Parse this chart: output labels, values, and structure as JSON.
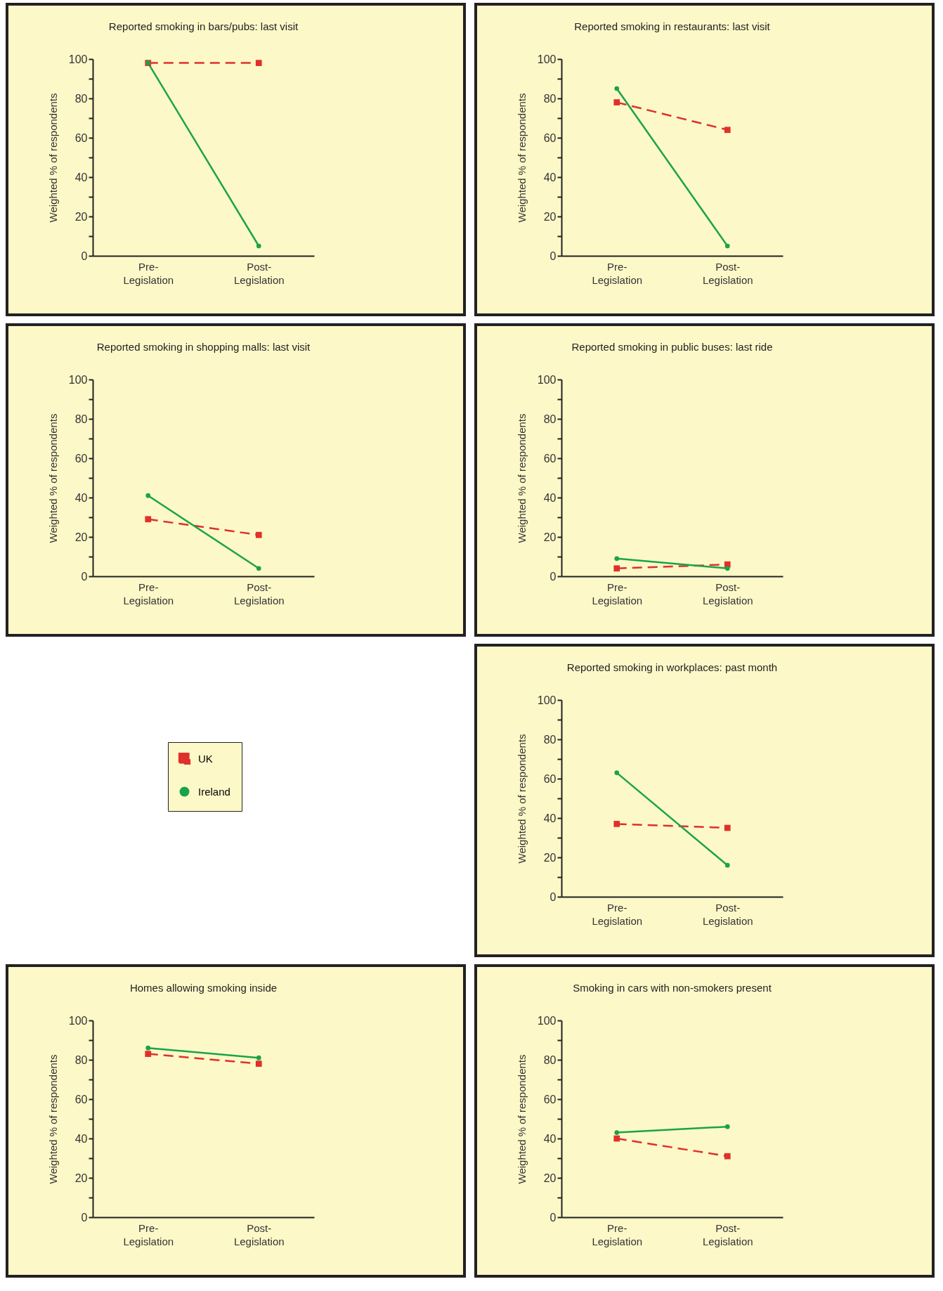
{
  "chart_data": [
    {
      "type": "line",
      "title": "Reported smoking in bars/pubs: last visit",
      "ylabel": "Weighted % of respondents",
      "categories": [
        "Pre-\nLegislation",
        "Post-\nLegislation"
      ],
      "ylim": [
        0,
        100
      ],
      "yticks": [
        0,
        {
          "value": 10,
          "label": null
        },
        20,
        {
          "value": 30,
          "label": null
        },
        40,
        {
          "value": 50,
          "label": null
        },
        60,
        {
          "value": 70,
          "label": null
        },
        80,
        {
          "value": 90,
          "label": null
        },
        100
      ],
      "grid": false,
      "legend": false,
      "series": [
        {
          "color": "#e0302a",
          "marker": "square",
          "line_style": "dashed",
          "values": [
            98,
            98
          ]
        },
        {
          "color": "#1aa34a",
          "marker": "circle",
          "line_style": "solid",
          "values": [
            98,
            5
          ]
        }
      ]
    },
    {
      "type": "line",
      "title": "Reported smoking in restaurants: last visit",
      "ylabel": "Weighted % of respondents",
      "categories": [
        "Pre-\nLegislation",
        "Post-\nLegislation"
      ],
      "ylim": [
        0,
        100
      ],
      "yticks": [
        0,
        {
          "value": 10,
          "label": null
        },
        20,
        {
          "value": 30,
          "label": null
        },
        40,
        {
          "value": 50,
          "label": null
        },
        60,
        {
          "value": 70,
          "label": null
        },
        80,
        {
          "value": 90,
          "label": null
        },
        100
      ],
      "grid": false,
      "legend": false,
      "series": [
        {
          "color": "#e0302a",
          "marker": "square",
          "line_style": "dashed",
          "values": [
            78,
            64
          ]
        },
        {
          "color": "#1aa34a",
          "marker": "circle",
          "line_style": "solid",
          "values": [
            85,
            5
          ]
        }
      ]
    },
    {
      "type": "line",
      "title": "Reported smoking in shopping malls: last visit",
      "ylabel": "Weighted % of respondents",
      "categories": [
        "Pre-\nLegislation",
        "Post-\nLegislation"
      ],
      "ylim": [
        0,
        100
      ],
      "yticks": [
        0,
        {
          "value": 10,
          "label": null
        },
        20,
        {
          "value": 30,
          "label": null
        },
        40,
        {
          "value": 50,
          "label": null
        },
        60,
        {
          "value": 70,
          "label": null
        },
        80,
        {
          "value": 90,
          "label": null
        },
        100
      ],
      "grid": false,
      "legend": false,
      "series": [
        {
          "color": "#e0302a",
          "marker": "square",
          "line_style": "dashed",
          "values": [
            29,
            21
          ]
        },
        {
          "color": "#1aa34a",
          "marker": "circle",
          "line_style": "solid",
          "values": [
            41,
            4
          ]
        }
      ]
    },
    {
      "type": "line",
      "title": "Reported smoking in public buses: last ride",
      "ylabel": "Weighted % of respondents",
      "categories": [
        "Pre-\nLegislation",
        "Post-\nLegislation"
      ],
      "ylim": [
        0,
        100
      ],
      "yticks": [
        0,
        {
          "value": 10,
          "label": null
        },
        20,
        {
          "value": 30,
          "label": null
        },
        40,
        {
          "value": 50,
          "label": null
        },
        60,
        {
          "value": 70,
          "label": null
        },
        80,
        {
          "value": 90,
          "label": null
        },
        100
      ],
      "grid": false,
      "legend": false,
      "series": [
        {
          "color": "#e0302a",
          "marker": "square",
          "line_style": "dashed",
          "values": [
            4,
            6
          ]
        },
        {
          "color": "#1aa34a",
          "marker": "circle",
          "line_style": "solid",
          "values": [
            9,
            4
          ]
        }
      ]
    },
    {
      "type": "line",
      "title": "Reported smoking in workplaces: past month",
      "ylabel": "Weighted % of respondents",
      "categories": [
        "Pre-\nLegislation",
        "Post-\nLegislation"
      ],
      "ylim": [
        0,
        100
      ],
      "yticks": [
        0,
        {
          "value": 10,
          "label": null
        },
        20,
        {
          "value": 30,
          "label": null
        },
        40,
        {
          "value": 50,
          "label": null
        },
        60,
        {
          "value": 70,
          "label": null
        },
        80,
        {
          "value": 90,
          "label": null
        },
        100
      ],
      "grid": false,
      "legend": "left",
      "series": [
        {
          "name": "UK",
          "color": "#e0302a",
          "marker": "square",
          "line_style": "dashed",
          "values": [
            37,
            35
          ]
        },
        {
          "name": "Ireland",
          "color": "#1aa34a",
          "marker": "circle",
          "line_style": "solid",
          "values": [
            63,
            16
          ]
        }
      ]
    },
    {
      "type": "line",
      "title": "Homes allowing smoking inside",
      "ylabel": "Weighted % of respondents",
      "categories": [
        "Pre-\nLegislation",
        "Post-\nLegislation"
      ],
      "ylim": [
        0,
        100
      ],
      "yticks": [
        0,
        {
          "value": 10,
          "label": null
        },
        20,
        {
          "value": 30,
          "label": null
        },
        40,
        {
          "value": 50,
          "label": null
        },
        60,
        {
          "value": 70,
          "label": null
        },
        80,
        {
          "value": 90,
          "label": null
        },
        100
      ],
      "grid": false,
      "legend": false,
      "series": [
        {
          "color": "#e0302a",
          "marker": "square",
          "line_style": "dashed",
          "values": [
            83,
            78
          ]
        },
        {
          "color": "#1aa34a",
          "marker": "circle",
          "line_style": "solid",
          "values": [
            86,
            81
          ]
        }
      ]
    },
    {
      "type": "line",
      "title": "Smoking in cars with non-smokers present",
      "ylabel": "Weighted % of respondents",
      "categories": [
        "Pre-\nLegislation",
        "Post-\nLegislation"
      ],
      "ylim": [
        0,
        100
      ],
      "yticks": [
        0,
        {
          "value": 10,
          "label": null
        },
        20,
        {
          "value": 30,
          "label": null
        },
        40,
        {
          "value": 50,
          "label": null
        },
        60,
        {
          "value": 70,
          "label": null
        },
        80,
        {
          "value": 90,
          "label": null
        },
        100
      ],
      "grid": false,
      "legend": false,
      "series": [
        {
          "color": "#e0302a",
          "marker": "square",
          "line_style": "dashed",
          "values": [
            40,
            31
          ]
        },
        {
          "color": "#1aa34a",
          "marker": "circle",
          "line_style": "solid",
          "values": [
            43,
            46
          ]
        }
      ]
    }
  ]
}
